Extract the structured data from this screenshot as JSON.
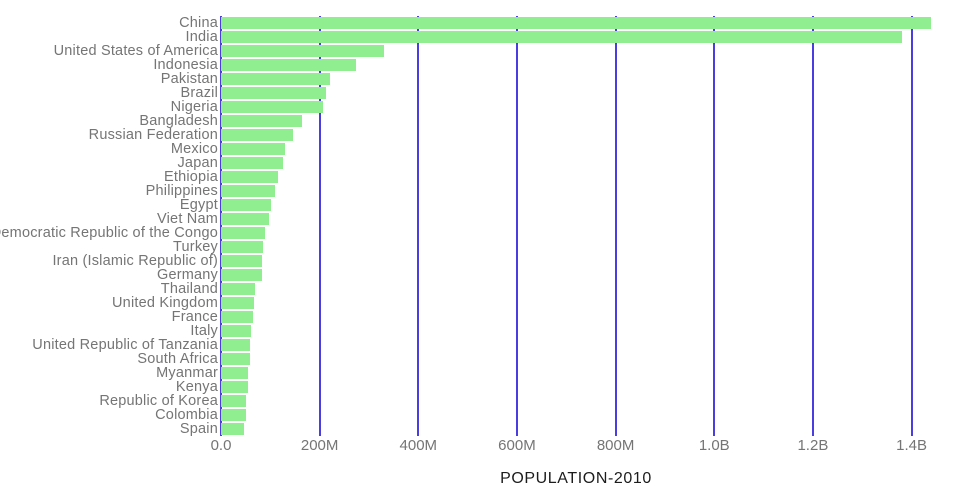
{
  "chart_data": {
    "type": "bar",
    "orientation": "horizontal",
    "title": "",
    "xlabel": "POPULATION-2010",
    "ylabel": "",
    "legend": "none",
    "grid": "vertical gridlines on",
    "categories": [
      "China",
      "India",
      "United States of America",
      "Indonesia",
      "Pakistan",
      "Brazil",
      "Nigeria",
      "Bangladesh",
      "Russian Federation",
      "Mexico",
      "Japan",
      "Ethiopia",
      "Philippines",
      "Egypt",
      "Viet Nam",
      "Democratic Republic of the Congo",
      "Turkey",
      "Iran (Islamic Republic of)",
      "Germany",
      "Thailand",
      "United Kingdom",
      "France",
      "Italy",
      "United Republic of Tanzania",
      "South Africa",
      "Myanmar",
      "Kenya",
      "Republic of Korea",
      "Colombia",
      "Spain"
    ],
    "values_millions": [
      1439.3,
      1380.0,
      331.0,
      273.5,
      220.9,
      212.6,
      206.1,
      164.7,
      145.9,
      128.9,
      126.5,
      115.0,
      109.6,
      102.3,
      97.3,
      89.6,
      84.3,
      84.0,
      83.8,
      69.8,
      67.9,
      65.3,
      60.5,
      59.7,
      59.3,
      54.4,
      53.8,
      51.3,
      50.9,
      46.8
    ],
    "x_tick_labels": [
      "0.0",
      "200M",
      "400M",
      "600M",
      "800M",
      "1.0B",
      "1.2B",
      "1.4B"
    ],
    "x_tick_values_millions": [
      0,
      200,
      400,
      600,
      800,
      1000,
      1200,
      1400
    ],
    "xlim_millions": [
      0,
      1450
    ],
    "colors": {
      "bar": "#90ee90",
      "gridline": "#4a3ee0",
      "category_label": "#757575",
      "tick_label": "#757575",
      "axis_title": "#1c1c1c",
      "background": "#ffffff"
    }
  }
}
